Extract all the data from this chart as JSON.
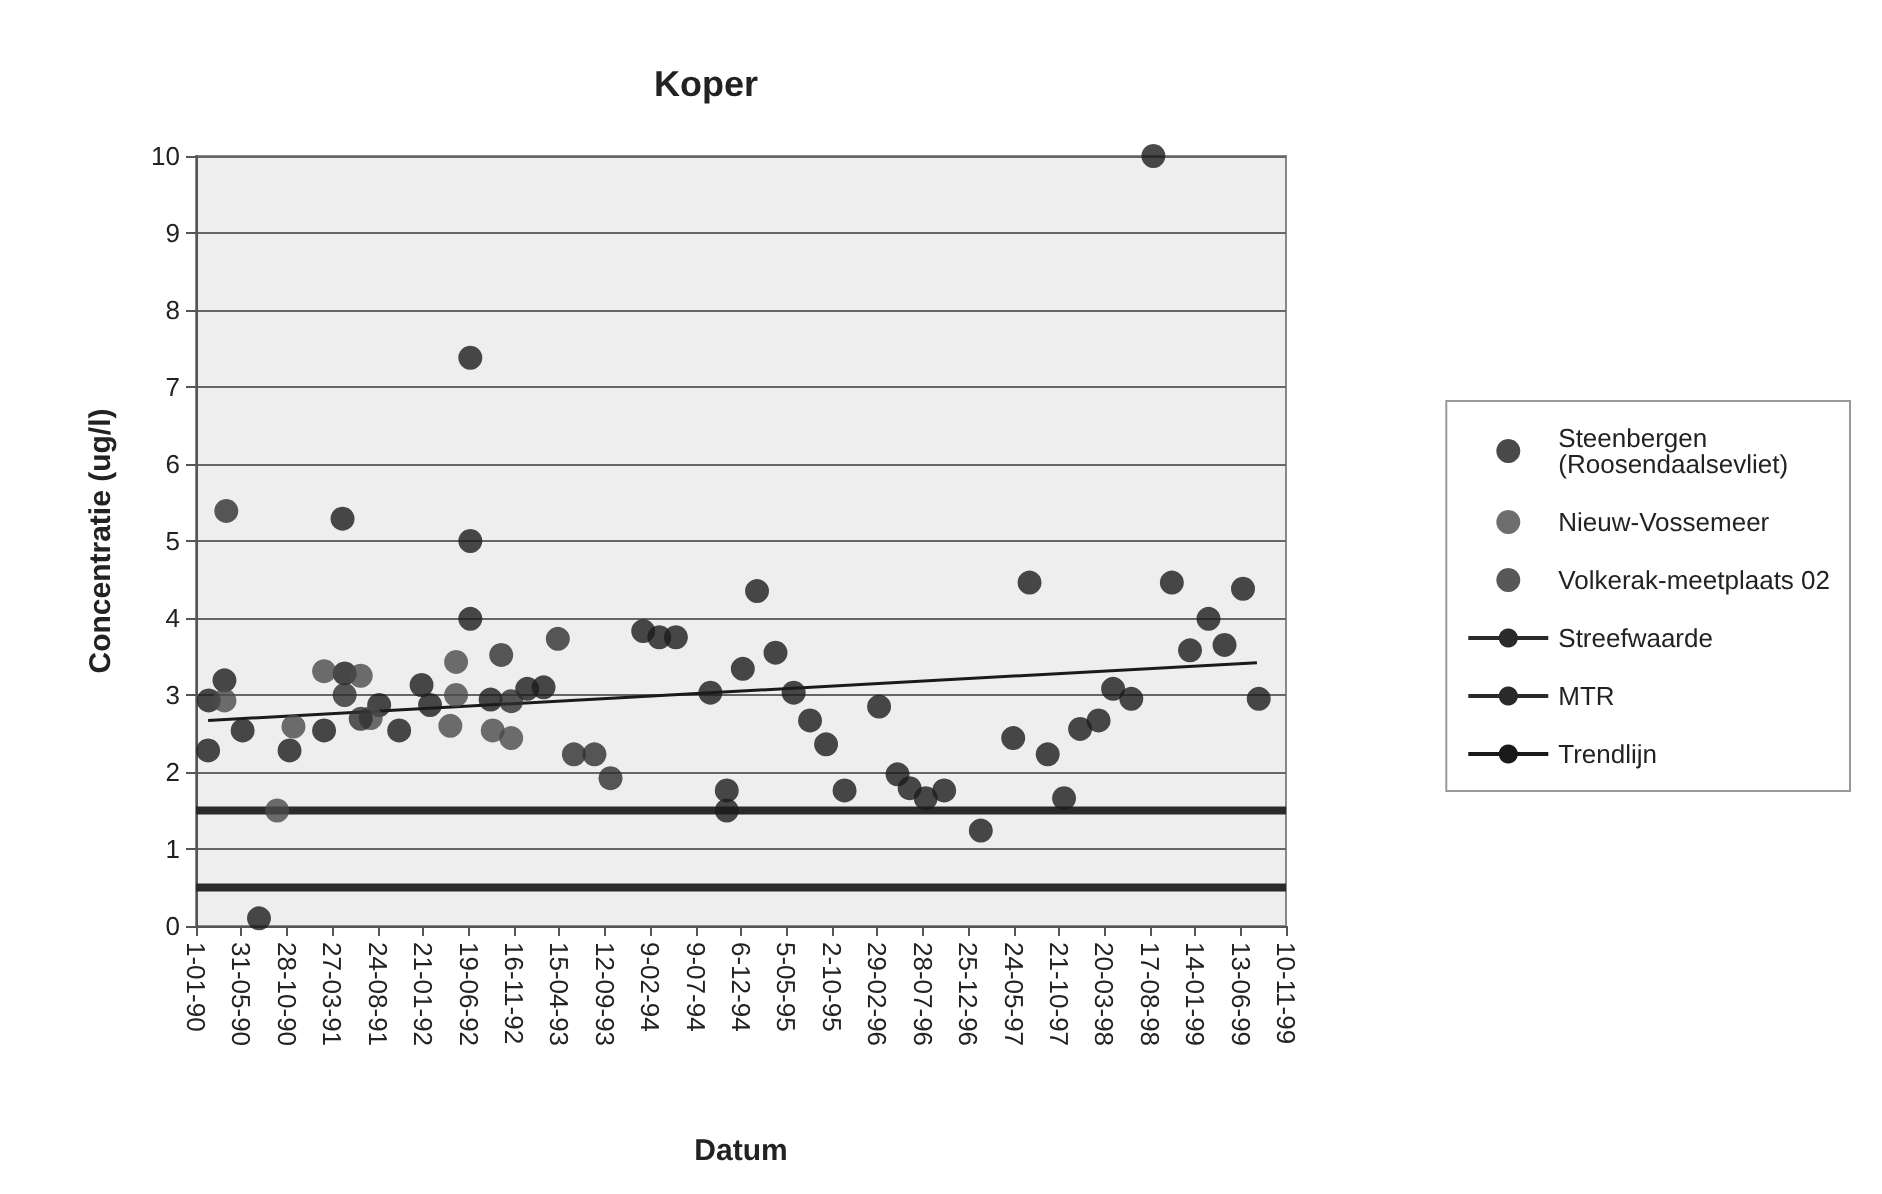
{
  "chart_data": {
    "type": "scatter",
    "title": "Koper",
    "xlabel": "Datum",
    "ylabel": "Concentratie (ug/l)",
    "xlim": [
      "1990-01-01",
      "1999-11-10"
    ],
    "ylim": [
      0,
      10
    ],
    "yticks": [
      0,
      1,
      2,
      3,
      4,
      5,
      6,
      7,
      8,
      9,
      10
    ],
    "xticks": [
      {
        "value": "1990-01-01",
        "label": "1-01-90"
      },
      {
        "value": "1990-05-31",
        "label": "31-05-90"
      },
      {
        "value": "1990-10-28",
        "label": "28-10-90"
      },
      {
        "value": "1991-03-27",
        "label": "27-03-91"
      },
      {
        "value": "1991-08-24",
        "label": "24-08-91"
      },
      {
        "value": "1992-01-21",
        "label": "21-01-92"
      },
      {
        "value": "1992-06-19",
        "label": "19-06-92"
      },
      {
        "value": "1992-11-16",
        "label": "16-11-92"
      },
      {
        "value": "1993-04-15",
        "label": "15-04-93"
      },
      {
        "value": "1993-09-12",
        "label": "12-09-93"
      },
      {
        "value": "1994-02-09",
        "label": "9-02-94"
      },
      {
        "value": "1994-07-09",
        "label": "9-07-94"
      },
      {
        "value": "1994-12-06",
        "label": "6-12-94"
      },
      {
        "value": "1995-05-05",
        "label": "5-05-95"
      },
      {
        "value": "1995-10-02",
        "label": "2-10-95"
      },
      {
        "value": "1996-02-29",
        "label": "29-02-96"
      },
      {
        "value": "1996-07-28",
        "label": "28-07-96"
      },
      {
        "value": "1996-12-25",
        "label": "25-12-96"
      },
      {
        "value": "1997-05-24",
        "label": "24-05-97"
      },
      {
        "value": "1997-10-21",
        "label": "21-10-97"
      },
      {
        "value": "1998-03-20",
        "label": "20-03-98"
      },
      {
        "value": "1998-08-17",
        "label": "17-08-98"
      },
      {
        "value": "1999-01-14",
        "label": "14-01-99"
      },
      {
        "value": "1999-06-13",
        "label": "13-06-99"
      },
      {
        "value": "1999-11-10",
        "label": "10-11-99"
      }
    ],
    "grid": "y",
    "legend": "right",
    "marker": "circle",
    "series": [
      {
        "name": "Steenbergen (Roosendaalsevliet)",
        "color": "#1c1c1c",
        "x": [
          "1990-02-10",
          "1990-04-05",
          "1990-02-12",
          "1990-06-04",
          "1990-07-28",
          "1990-11-06",
          "1991-02-28",
          "1991-04-30",
          "1991-05-07",
          "1991-08-29",
          "1991-11-03",
          "1992-01-16",
          "1992-02-13",
          "1992-06-25",
          "1992-06-25",
          "1992-06-25",
          "1992-08-31",
          "1992-12-30",
          "1993-02-22",
          "1994-01-17",
          "1994-03-11",
          "1994-05-05",
          "1994-08-27",
          "1994-10-20",
          "1994-10-20",
          "1994-12-12",
          "1995-01-28",
          "1995-03-30",
          "1995-05-29",
          "1995-07-22",
          "1995-09-13",
          "1995-11-13",
          "1996-03-06",
          "1996-05-06",
          "1996-06-15",
          "1996-08-07",
          "1996-10-07",
          "1997-02-05",
          "1997-05-23",
          "1997-07-16",
          "1997-09-14",
          "1997-11-07",
          "1997-12-30",
          "1998-03-01",
          "1998-04-18",
          "1998-06-17",
          "1998-08-29",
          "1998-10-29",
          "1998-12-28",
          "1999-02-27",
          "1999-04-21",
          "1999-06-21",
          "1999-08-12"
        ],
        "values": [
          2.28,
          3.19,
          2.93,
          2.54,
          0.1,
          2.28,
          2.54,
          5.29,
          3.28,
          2.87,
          2.54,
          3.13,
          2.87,
          7.38,
          5.0,
          3.99,
          2.94,
          3.08,
          3.1,
          3.83,
          3.75,
          3.75,
          3.03,
          1.76,
          1.5,
          3.34,
          4.35,
          3.55,
          3.03,
          2.67,
          2.36,
          1.76,
          2.85,
          1.97,
          1.79,
          1.66,
          1.76,
          1.24,
          2.44,
          4.46,
          2.23,
          1.66,
          2.56,
          2.67,
          3.08,
          2.95,
          10,
          4.46,
          3.58,
          3.99,
          3.65,
          4.38,
          2.95
        ]
      },
      {
        "name": "Nieuw-Vossemeer",
        "color": "#4a4a4a",
        "x": [
          "1990-04-05",
          "1990-09-26",
          "1990-11-19",
          "1991-02-28",
          "1991-06-29",
          "1991-08-01",
          "1992-04-20",
          "1992-05-09",
          "1992-05-09",
          "1992-09-07",
          "1992-11-07"
        ],
        "values": [
          2.93,
          1.5,
          2.59,
          3.31,
          3.25,
          2.7,
          2.6,
          3.0,
          3.43,
          2.54,
          2.44
        ]
      },
      {
        "name": "Volkerak-meetplaats 02",
        "color": "#2e2e2e",
        "x": [
          "1990-04-11",
          "1991-05-07",
          "1991-06-29",
          "1992-10-05",
          "1992-11-07",
          "1993-04-10",
          "1993-06-02",
          "1993-08-09",
          "1993-10-01"
        ],
        "values": [
          5.39,
          3.0,
          2.69,
          3.52,
          2.92,
          3.73,
          2.23,
          2.23,
          1.92
        ]
      },
      {
        "name": "Trendlijn",
        "type": "line",
        "color": "#1a1a1a",
        "marker": "none",
        "x": [
          "1990-02-10",
          "1999-08-06"
        ],
        "values": [
          2.67,
          3.42
        ]
      }
    ],
    "ref_lines": [
      {
        "axis": "y",
        "value": 0.5,
        "label": "Streefwaarde",
        "color": "#2a2a2a"
      },
      {
        "axis": "y",
        "value": 1.5,
        "label": "MTR",
        "color": "#2a2a2a"
      }
    ]
  }
}
